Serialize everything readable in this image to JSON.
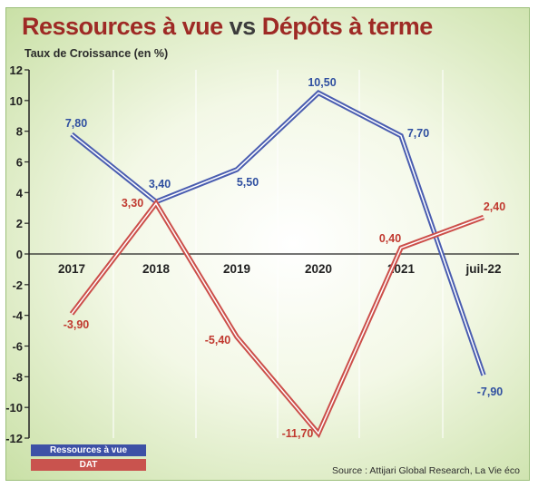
{
  "title": {
    "part1": "Ressources à vue",
    "vs": "vs",
    "part2": "Dépôts à terme"
  },
  "subtitle": "Taux de Croissance (en %)",
  "source": "Source : Attijari Global Research, La Vie éco",
  "colors": {
    "series_0": "#4a5db0",
    "series_1": "#cc4f4a",
    "label_0": "#2f4fa0",
    "label_1": "#c0392f"
  },
  "chart_data": {
    "type": "line",
    "categories": [
      "2017",
      "2018",
      "2019",
      "2020",
      "2021",
      "juil-22"
    ],
    "series": [
      {
        "name": "Ressources à vue",
        "values": [
          7.8,
          3.4,
          5.5,
          10.5,
          7.7,
          -7.9
        ],
        "labels": [
          "7,80",
          "3,40",
          "5,50",
          "10,50",
          "7,70",
          "-7,90"
        ]
      },
      {
        "name": "DAT",
        "values": [
          -3.9,
          3.3,
          -5.4,
          -11.7,
          0.4,
          2.4
        ],
        "labels": [
          "-3,90",
          "3,30",
          "-5,40",
          "-11,70",
          "0,40",
          "2,40"
        ]
      }
    ],
    "yticks": [
      12,
      10,
      8,
      6,
      4,
      2,
      0,
      -2,
      -4,
      -6,
      -8,
      -10,
      -12
    ],
    "ylim": [
      -12,
      12
    ],
    "grid": "vertical",
    "legend": "bottom-left"
  }
}
